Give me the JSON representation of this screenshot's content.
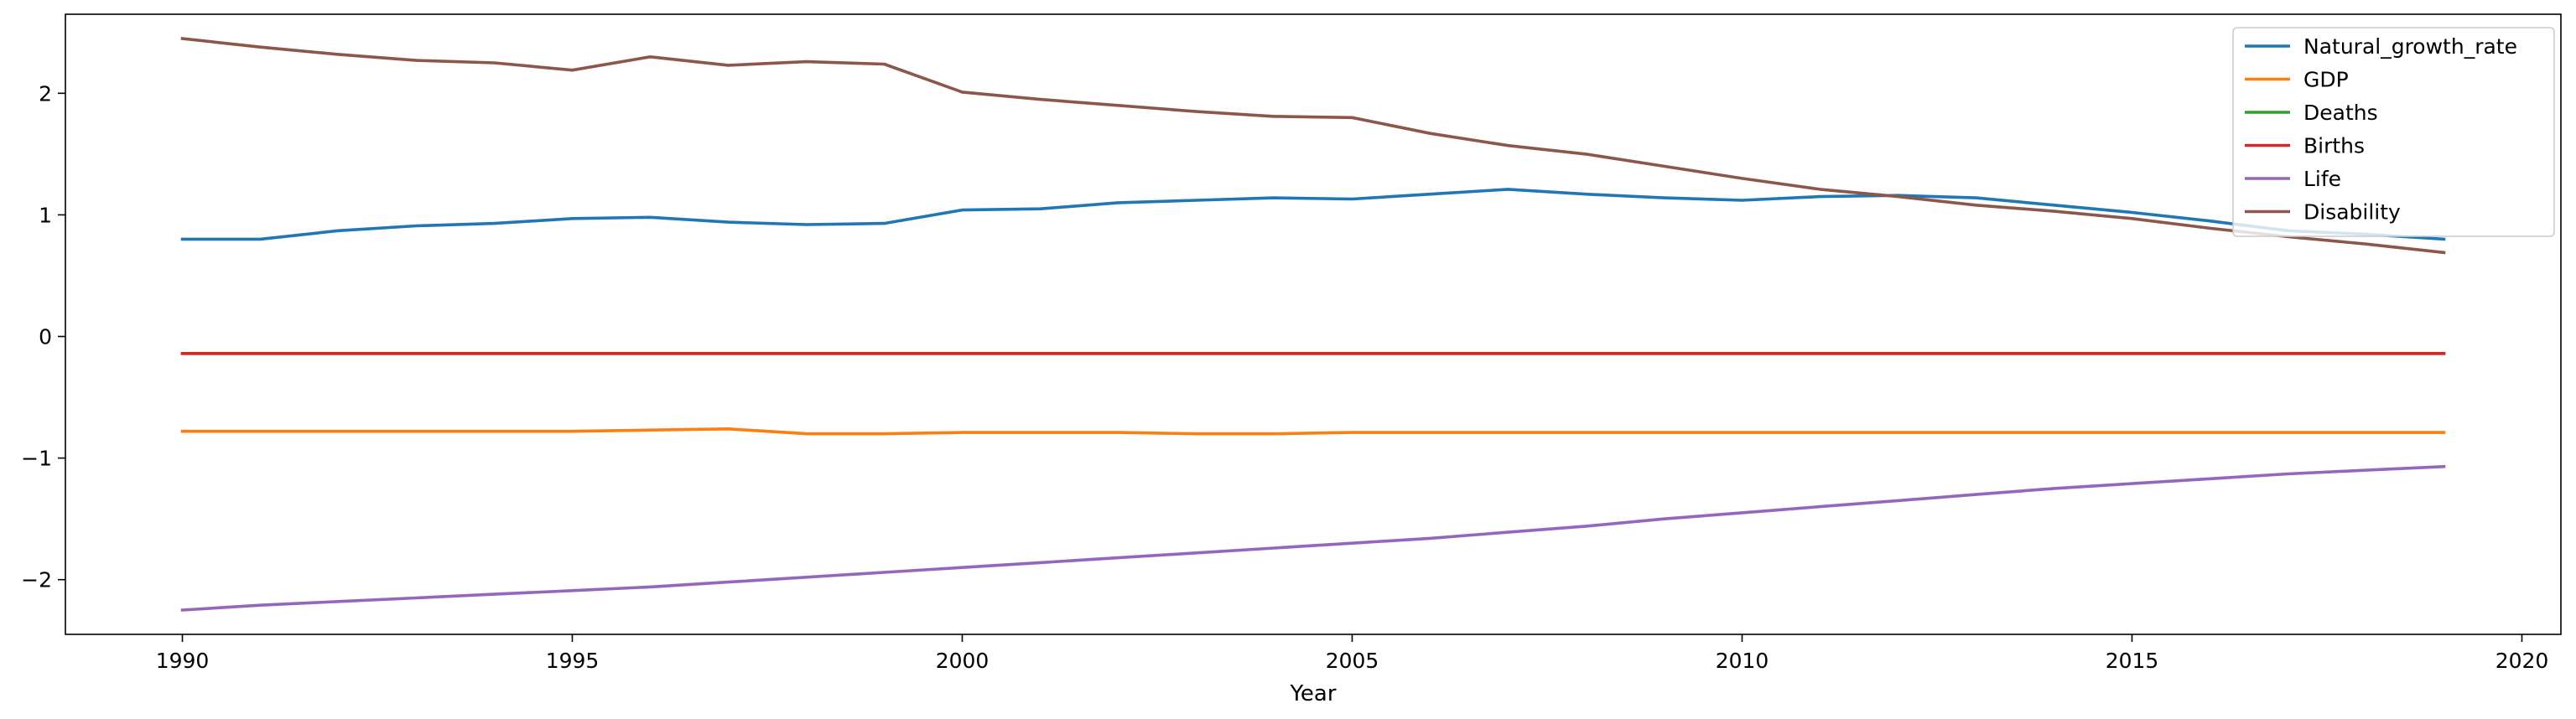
{
  "chart_data": {
    "type": "line",
    "xlabel": "Year",
    "ylabel": "",
    "title": "",
    "xlim": [
      1988.5,
      2020.5
    ],
    "ylim": [
      -2.45,
      2.65
    ],
    "xticks": [
      1990,
      1995,
      2000,
      2005,
      2010,
      2015,
      2020
    ],
    "yticks": [
      -2,
      -1,
      0,
      1,
      2
    ],
    "grid": false,
    "legend_position": "top-right",
    "x": [
      1990,
      1991,
      1992,
      1993,
      1994,
      1995,
      1996,
      1997,
      1998,
      1999,
      2000,
      2001,
      2002,
      2003,
      2004,
      2005,
      2006,
      2007,
      2008,
      2009,
      2010,
      2011,
      2012,
      2013,
      2014,
      2015,
      2016,
      2017,
      2018,
      2019
    ],
    "series": [
      {
        "name": "Natural_growth_rate",
        "color": "#1f77b4",
        "values": [
          0.8,
          0.8,
          0.87,
          0.91,
          0.93,
          0.97,
          0.98,
          0.94,
          0.92,
          0.93,
          1.04,
          1.05,
          1.1,
          1.12,
          1.14,
          1.13,
          1.17,
          1.21,
          1.17,
          1.14,
          1.12,
          1.15,
          1.16,
          1.14,
          1.08,
          1.02,
          0.95,
          0.87,
          0.84,
          0.8
        ]
      },
      {
        "name": "GDP",
        "color": "#ff7f0e",
        "values": [
          -0.78,
          -0.78,
          -0.78,
          -0.78,
          -0.78,
          -0.78,
          -0.77,
          -0.76,
          -0.8,
          -0.8,
          -0.79,
          -0.79,
          -0.79,
          -0.8,
          -0.8,
          -0.79,
          -0.79,
          -0.79,
          -0.79,
          -0.79,
          -0.79,
          -0.79,
          -0.79,
          -0.79,
          -0.79,
          -0.79,
          -0.79,
          -0.79,
          -0.79,
          -0.79
        ]
      },
      {
        "name": "Deaths",
        "color": "#2ca02c",
        "values": [
          -0.14,
          -0.14,
          -0.14,
          -0.14,
          -0.14,
          -0.14,
          -0.14,
          -0.14,
          -0.14,
          -0.14,
          -0.14,
          -0.14,
          -0.14,
          -0.14,
          -0.14,
          -0.14,
          -0.14,
          -0.14,
          -0.14,
          -0.14,
          -0.14,
          -0.14,
          -0.14,
          -0.14,
          -0.14,
          -0.14,
          -0.14,
          -0.14,
          -0.14,
          -0.14
        ]
      },
      {
        "name": "Births",
        "color": "#d62728",
        "values": [
          -0.14,
          -0.14,
          -0.14,
          -0.14,
          -0.14,
          -0.14,
          -0.14,
          -0.14,
          -0.14,
          -0.14,
          -0.14,
          -0.14,
          -0.14,
          -0.14,
          -0.14,
          -0.14,
          -0.14,
          -0.14,
          -0.14,
          -0.14,
          -0.14,
          -0.14,
          -0.14,
          -0.14,
          -0.14,
          -0.14,
          -0.14,
          -0.14,
          -0.14,
          -0.14
        ]
      },
      {
        "name": "Life",
        "color": "#9467bd",
        "values": [
          -2.25,
          -2.21,
          -2.18,
          -2.15,
          -2.12,
          -2.09,
          -2.06,
          -2.02,
          -1.98,
          -1.94,
          -1.9,
          -1.86,
          -1.82,
          -1.78,
          -1.74,
          -1.7,
          -1.66,
          -1.61,
          -1.56,
          -1.5,
          -1.45,
          -1.4,
          -1.35,
          -1.3,
          -1.25,
          -1.21,
          -1.17,
          -1.13,
          -1.1,
          -1.07
        ]
      },
      {
        "name": "Disability",
        "color": "#8c564b",
        "values": [
          2.45,
          2.38,
          2.32,
          2.27,
          2.25,
          2.19,
          2.3,
          2.23,
          2.26,
          2.24,
          2.01,
          1.95,
          1.9,
          1.85,
          1.81,
          1.8,
          1.67,
          1.57,
          1.5,
          1.4,
          1.3,
          1.21,
          1.15,
          1.08,
          1.03,
          0.97,
          0.89,
          0.82,
          0.76,
          0.69
        ]
      }
    ]
  }
}
